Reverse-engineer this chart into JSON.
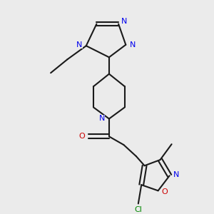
{
  "background_color": "#ebebeb",
  "bond_color": "#1a1a1a",
  "N_color": "#0000ee",
  "O_color": "#cc0000",
  "Cl_color": "#008800",
  "line_width": 1.5,
  "font_size": 8.0,
  "figsize": [
    3.0,
    3.0
  ],
  "dpi": 100,
  "xlim": [
    0,
    10
  ],
  "ylim": [
    0,
    10
  ]
}
